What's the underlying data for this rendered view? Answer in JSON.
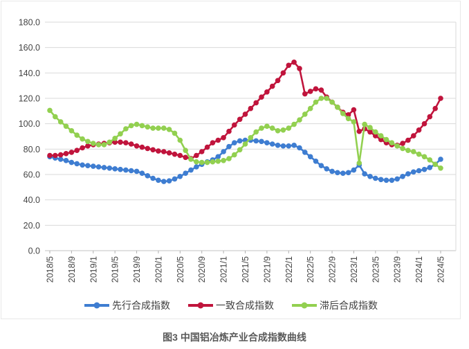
{
  "figure": {
    "caption": "图3 中国铝冶炼产业合成指数曲线"
  },
  "chart_data": {
    "type": "line",
    "title": "",
    "xlabel": "",
    "ylabel": "",
    "ylim": [
      0,
      180
    ],
    "y_tick_step": 20,
    "y_ticks": [
      "0.0",
      "20.0",
      "40.0",
      "60.0",
      "80.0",
      "100.0",
      "120.0",
      "140.0",
      "160.0",
      "180.0"
    ],
    "grid": "horizontal",
    "legend_position": "bottom",
    "marker": "circle",
    "x_ticks": [
      "2018/5",
      "2018/9",
      "2019/1",
      "2019/5",
      "2019/9",
      "2020/1",
      "2020/5",
      "2020/9",
      "2021/1",
      "2021/5",
      "2021/9",
      "2022/1",
      "2022/5",
      "2022/9",
      "2023/1",
      "2023/5",
      "2023/9",
      "2024/1",
      "2024/5"
    ],
    "x": [
      "2018/5",
      "2018/6",
      "2018/7",
      "2018/8",
      "2018/9",
      "2018/10",
      "2018/11",
      "2018/12",
      "2019/1",
      "2019/2",
      "2019/3",
      "2019/4",
      "2019/5",
      "2019/6",
      "2019/7",
      "2019/8",
      "2019/9",
      "2019/10",
      "2019/11",
      "2019/12",
      "2020/1",
      "2020/2",
      "2020/3",
      "2020/4",
      "2020/5",
      "2020/6",
      "2020/7",
      "2020/8",
      "2020/9",
      "2020/10",
      "2020/11",
      "2020/12",
      "2021/1",
      "2021/2",
      "2021/3",
      "2021/4",
      "2021/5",
      "2021/6",
      "2021/7",
      "2021/8",
      "2021/9",
      "2021/10",
      "2021/11",
      "2021/12",
      "2022/1",
      "2022/2",
      "2022/3",
      "2022/4",
      "2022/5",
      "2022/6",
      "2022/7",
      "2022/8",
      "2022/9",
      "2022/10",
      "2022/11",
      "2022/12",
      "2023/1",
      "2023/2",
      "2023/3",
      "2023/4",
      "2023/5",
      "2023/6",
      "2023/7",
      "2023/8",
      "2023/9",
      "2023/10",
      "2023/11",
      "2023/12",
      "2024/1",
      "2024/2",
      "2024/3",
      "2024/4",
      "2024/5"
    ],
    "series": [
      {
        "name": "先行合成指数",
        "color": "#3e7dd1",
        "values": [
          74,
          73,
          72,
          71,
          69.5,
          68.5,
          67.5,
          67,
          66.5,
          66,
          65.5,
          65,
          64.5,
          64,
          63.5,
          63,
          62.5,
          61,
          59,
          57,
          55.5,
          54.5,
          55,
          56.5,
          58.5,
          61,
          63.5,
          66,
          68,
          70,
          71.5,
          74,
          78,
          82,
          85,
          86.5,
          87,
          87,
          86.5,
          86,
          85,
          84,
          83,
          82.5,
          82.5,
          83,
          81,
          77.5,
          74,
          70.5,
          67,
          64.5,
          62.5,
          61.5,
          61,
          61.5,
          63.5,
          67.5,
          60.5,
          58.5,
          57,
          56,
          55.5,
          55.5,
          56.5,
          58.5,
          60.5,
          62,
          63,
          64,
          65.5,
          68,
          72
        ]
      },
      {
        "name": "一致合成指数",
        "color": "#c0143c",
        "values": [
          75,
          75,
          75.5,
          76.5,
          77.5,
          79,
          81,
          82.5,
          83.5,
          84,
          84.5,
          85,
          85.5,
          85.5,
          85,
          84,
          82.5,
          81.5,
          80.5,
          79.5,
          78.5,
          78,
          77,
          76,
          75,
          73.5,
          72.5,
          75,
          78,
          81.5,
          85,
          87,
          89,
          94,
          99,
          103.5,
          107.5,
          112,
          116.5,
          121,
          125,
          129.5,
          134,
          140,
          146,
          148.5,
          143.5,
          123.5,
          125.5,
          127.5,
          126.5,
          121,
          117,
          113,
          109,
          107,
          111,
          94,
          96,
          93.5,
          90.5,
          87.5,
          85,
          83.5,
          83,
          84.5,
          87,
          90.5,
          95,
          100,
          105.5,
          112,
          120
        ]
      },
      {
        "name": "滞后合成指数",
        "color": "#92d050",
        "values": [
          110.5,
          105.5,
          101.5,
          98,
          94.5,
          91,
          88,
          86,
          84.5,
          83.5,
          83.5,
          85.5,
          88.5,
          92,
          96,
          98.5,
          99.5,
          98.5,
          97.5,
          96.5,
          96.5,
          96.5,
          95.5,
          92.5,
          87,
          79,
          72,
          70,
          69.5,
          69.5,
          70,
          70.5,
          71,
          72.5,
          75.5,
          79.5,
          84,
          89,
          93.5,
          96.5,
          98,
          96.5,
          94.5,
          95,
          96.5,
          99.5,
          103,
          107.5,
          112,
          117,
          120,
          120,
          117,
          113,
          108,
          104,
          101.5,
          69,
          99.5,
          97,
          93.5,
          90.5,
          87.5,
          85,
          82.5,
          80.5,
          79,
          78,
          76,
          74,
          71.5,
          68,
          65
        ]
      }
    ]
  }
}
